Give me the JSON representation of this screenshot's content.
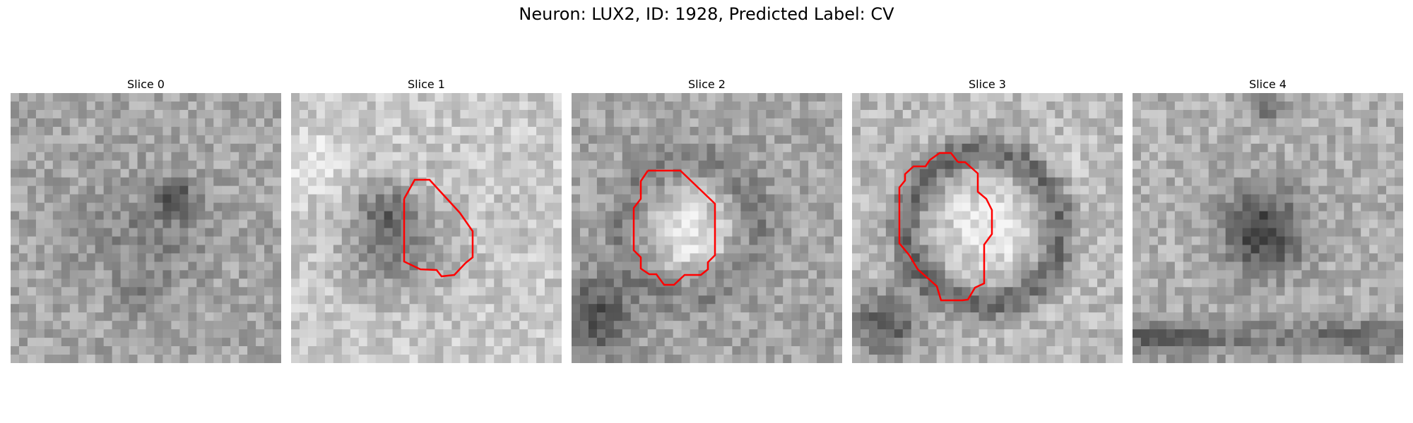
{
  "figure": {
    "title": "Neuron: LUX2, ID: 1928, Predicted Label: CV"
  },
  "panels": [
    {
      "title": "Slice 0",
      "contour": false
    },
    {
      "title": "Slice 1",
      "contour": true
    },
    {
      "title": "Slice 2",
      "contour": true
    },
    {
      "title": "Slice 3",
      "contour": true
    },
    {
      "title": "Slice 4",
      "contour": false
    }
  ],
  "colors": {
    "contour": "#ff0000",
    "background": "#ffffff"
  },
  "image_style": "grayscale-microscopy-patch"
}
